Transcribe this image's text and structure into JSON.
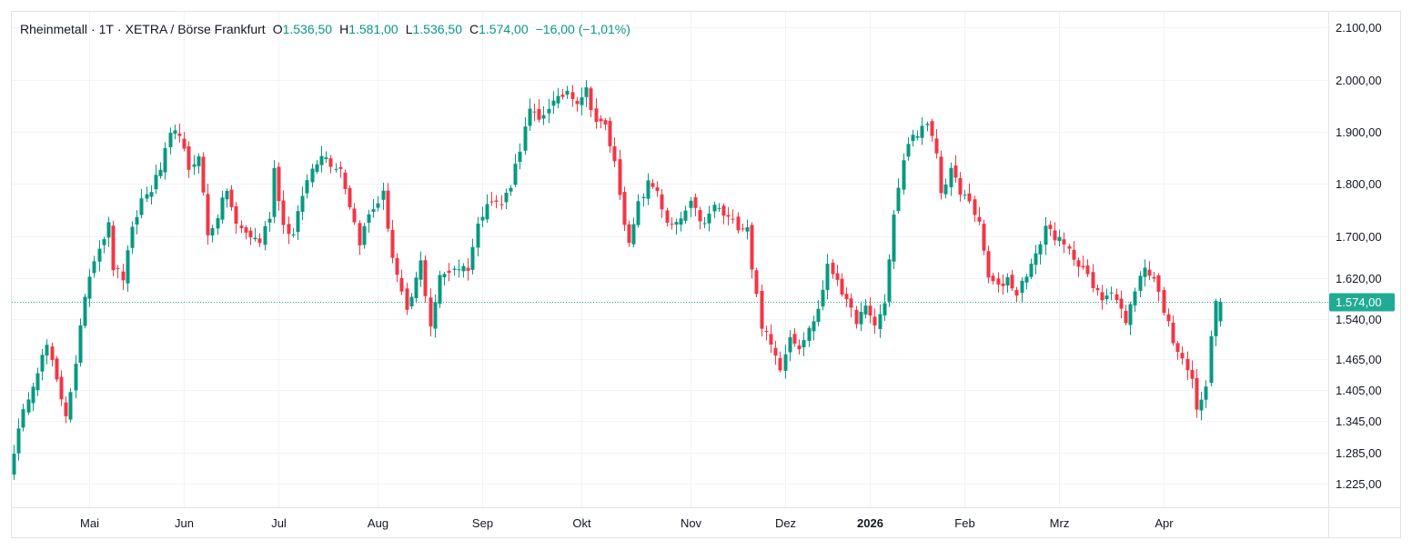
{
  "legend": {
    "symbol": "Rheinmetall",
    "interval": "1T",
    "exchange": "XETRA / Börse Frankfurt",
    "open_label": "O",
    "open": "1.536,50",
    "high_label": "H",
    "high": "1.581,00",
    "low_label": "L",
    "low": "1.536,50",
    "close_label": "C",
    "close": "1.574,00",
    "change": "−16,00 (−1,01%)"
  },
  "colors": {
    "up": "#089981",
    "down": "#f23645",
    "grid": "#f0f3fa",
    "text": "#131722",
    "last": "#22ab94"
  },
  "chart_data": {
    "type": "candlestick",
    "title": "Rheinmetall · 1T · XETRA / Börse Frankfurt",
    "ylim": [
      1180,
      2130
    ],
    "y_ticks": [
      {
        "value": 2100,
        "label": "2.100,00"
      },
      {
        "value": 2000,
        "label": "2.000,00"
      },
      {
        "value": 1900,
        "label": "1.900,00"
      },
      {
        "value": 1800,
        "label": "1.800,00"
      },
      {
        "value": 1700,
        "label": "1.700,00"
      },
      {
        "value": 1620,
        "label": "1.620,00"
      },
      {
        "value": 1540,
        "label": "1.540,00"
      },
      {
        "value": 1465,
        "label": "1.465,00"
      },
      {
        "value": 1405,
        "label": "1.405,00"
      },
      {
        "value": 1345,
        "label": "1.345,00"
      },
      {
        "value": 1285,
        "label": "1.285,00"
      },
      {
        "value": 1225,
        "label": "1.225,00"
      }
    ],
    "x_ticks": [
      {
        "index": 16,
        "label": "Mai",
        "bold": false
      },
      {
        "index": 36,
        "label": "Jun",
        "bold": false
      },
      {
        "index": 56,
        "label": "Jul",
        "bold": false
      },
      {
        "index": 77,
        "label": "Aug",
        "bold": false
      },
      {
        "index": 99,
        "label": "Sep",
        "bold": false
      },
      {
        "index": 120,
        "label": "Okt",
        "bold": false
      },
      {
        "index": 143,
        "label": "Nov",
        "bold": false
      },
      {
        "index": 163,
        "label": "Dez",
        "bold": false
      },
      {
        "index": 181,
        "label": "2026",
        "bold": true
      },
      {
        "index": 201,
        "label": "Feb",
        "bold": false
      },
      {
        "index": 221,
        "label": "Mrz",
        "bold": false
      },
      {
        "index": 243,
        "label": "Apr",
        "bold": false
      }
    ],
    "last_price": {
      "value": 1574,
      "label": "1.574,00"
    },
    "keypoints": [
      [
        0,
        1290
      ],
      [
        3,
        1395
      ],
      [
        5,
        1445
      ],
      [
        7,
        1490
      ],
      [
        9,
        1420
      ],
      [
        11,
        1360
      ],
      [
        13,
        1450
      ],
      [
        15,
        1590
      ],
      [
        17,
        1660
      ],
      [
        20,
        1720
      ],
      [
        21,
        1640
      ],
      [
        23,
        1620
      ],
      [
        25,
        1710
      ],
      [
        27,
        1770
      ],
      [
        29,
        1790
      ],
      [
        31,
        1830
      ],
      [
        33,
        1890
      ],
      [
        35,
        1900
      ],
      [
        37,
        1820
      ],
      [
        39,
        1860
      ],
      [
        41,
        1700
      ],
      [
        43,
        1740
      ],
      [
        45,
        1790
      ],
      [
        47,
        1720
      ],
      [
        50,
        1700
      ],
      [
        52,
        1690
      ],
      [
        54,
        1740
      ],
      [
        55,
        1830
      ],
      [
        57,
        1720
      ],
      [
        59,
        1700
      ],
      [
        61,
        1780
      ],
      [
        63,
        1830
      ],
      [
        65,
        1860
      ],
      [
        67,
        1840
      ],
      [
        69,
        1830
      ],
      [
        71,
        1760
      ],
      [
        73,
        1690
      ],
      [
        75,
        1740
      ],
      [
        78,
        1780
      ],
      [
        80,
        1660
      ],
      [
        83,
        1550
      ],
      [
        86,
        1650
      ],
      [
        88,
        1530
      ],
      [
        90,
        1620
      ],
      [
        93,
        1640
      ],
      [
        96,
        1640
      ],
      [
        98,
        1720
      ],
      [
        100,
        1770
      ],
      [
        103,
        1760
      ],
      [
        105,
        1800
      ],
      [
        107,
        1870
      ],
      [
        109,
        1940
      ],
      [
        111,
        1920
      ],
      [
        113,
        1950
      ],
      [
        115,
        1960
      ],
      [
        117,
        1980
      ],
      [
        119,
        1960
      ],
      [
        121,
        1980
      ],
      [
        123,
        1920
      ],
      [
        125,
        1910
      ],
      [
        127,
        1840
      ],
      [
        129,
        1730
      ],
      [
        130,
        1680
      ],
      [
        132,
        1760
      ],
      [
        134,
        1800
      ],
      [
        136,
        1790
      ],
      [
        138,
        1720
      ],
      [
        140,
        1720
      ],
      [
        143,
        1760
      ],
      [
        146,
        1720
      ],
      [
        148,
        1760
      ],
      [
        150,
        1740
      ],
      [
        153,
        1720
      ],
      [
        155,
        1720
      ],
      [
        156,
        1640
      ],
      [
        158,
        1530
      ],
      [
        160,
        1490
      ],
      [
        162,
        1450
      ],
      [
        164,
        1510
      ],
      [
        166,
        1490
      ],
      [
        168,
        1520
      ],
      [
        170,
        1560
      ],
      [
        172,
        1640
      ],
      [
        174,
        1620
      ],
      [
        176,
        1570
      ],
      [
        178,
        1540
      ],
      [
        180,
        1560
      ],
      [
        182,
        1530
      ],
      [
        184,
        1570
      ],
      [
        185,
        1660
      ],
      [
        186,
        1740
      ],
      [
        188,
        1840
      ],
      [
        189,
        1880
      ],
      [
        191,
        1900
      ],
      [
        193,
        1910
      ],
      [
        195,
        1860
      ],
      [
        196,
        1780
      ],
      [
        198,
        1830
      ],
      [
        200,
        1780
      ],
      [
        202,
        1770
      ],
      [
        204,
        1720
      ],
      [
        206,
        1620
      ],
      [
        208,
        1600
      ],
      [
        210,
        1620
      ],
      [
        212,
        1590
      ],
      [
        214,
        1630
      ],
      [
        216,
        1660
      ],
      [
        218,
        1720
      ],
      [
        220,
        1700
      ],
      [
        222,
        1680
      ],
      [
        224,
        1660
      ],
      [
        226,
        1640
      ],
      [
        228,
        1600
      ],
      [
        230,
        1580
      ],
      [
        232,
        1600
      ],
      [
        234,
        1560
      ],
      [
        235,
        1530
      ],
      [
        237,
        1600
      ],
      [
        239,
        1640
      ],
      [
        241,
        1620
      ],
      [
        243,
        1560
      ],
      [
        245,
        1500
      ],
      [
        247,
        1470
      ],
      [
        249,
        1420
      ],
      [
        250,
        1370
      ],
      [
        251,
        1380
      ],
      [
        252,
        1420
      ],
      [
        253,
        1500
      ],
      [
        254,
        1580
      ],
      [
        255,
        1574
      ]
    ]
  }
}
